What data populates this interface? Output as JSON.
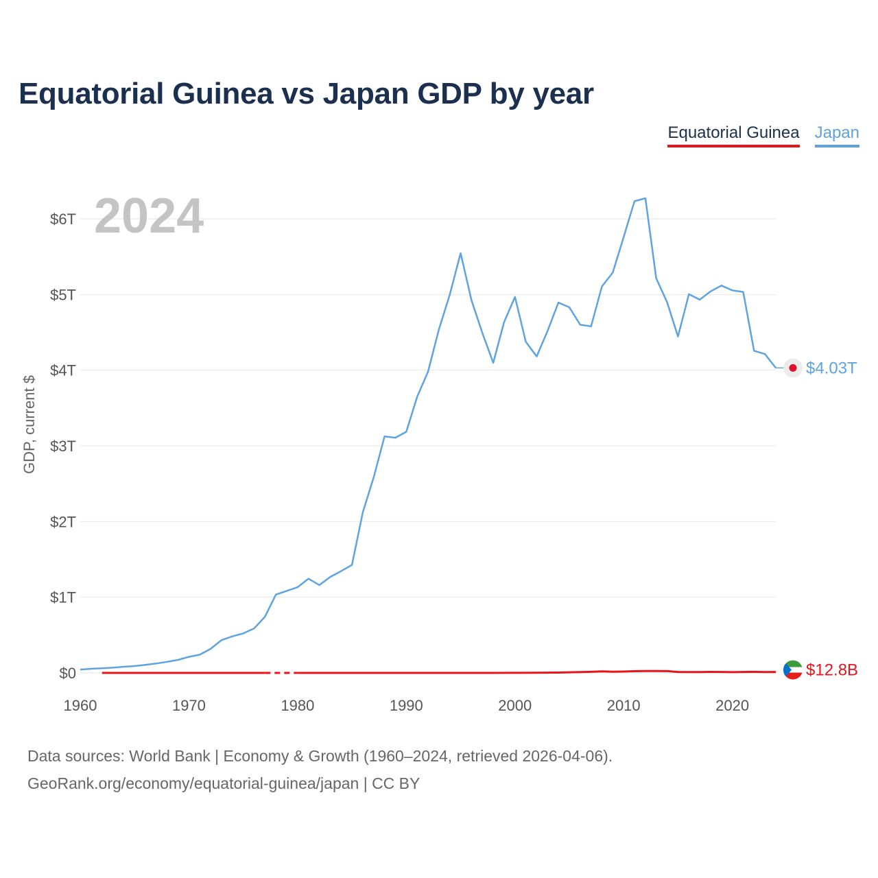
{
  "title": "Equatorial Guinea vs Japan GDP by year",
  "legend": [
    {
      "name": "Equatorial Guinea",
      "color": "#e8141c"
    },
    {
      "name": "Japan",
      "color": "#5ea3e0"
    }
  ],
  "year_label": "2024",
  "footer": {
    "line1": "Data sources: World Bank | Economy & Growth (1960–2024, retrieved 2026-04-06).",
    "line2": "GeoRank.org/economy/equatorial-guinea/japan | CC BY"
  },
  "chart_data": {
    "type": "line",
    "title": "Equatorial Guinea vs Japan GDP by year",
    "xlabel": "",
    "ylabel": "GDP, current $",
    "xlim": [
      1960,
      2024
    ],
    "ylim": [
      0,
      6
    ],
    "y_unit": "trillion US$",
    "x_ticks": [
      1960,
      1970,
      1980,
      1990,
      2000,
      2010,
      2020
    ],
    "y_ticks": [
      0,
      1,
      2,
      3,
      4,
      5,
      6
    ],
    "y_tick_labels": [
      "$0",
      "$1T",
      "$2T",
      "$3T",
      "$4T",
      "$5T",
      "$6T"
    ],
    "grid": true,
    "series": [
      {
        "name": "Japan",
        "color": "#5ea3e0",
        "end_label": "$4.03T",
        "points": [
          [
            1960,
            0.044
          ],
          [
            1961,
            0.054
          ],
          [
            1962,
            0.061
          ],
          [
            1963,
            0.069
          ],
          [
            1964,
            0.082
          ],
          [
            1965,
            0.091
          ],
          [
            1966,
            0.106
          ],
          [
            1967,
            0.124
          ],
          [
            1968,
            0.147
          ],
          [
            1969,
            0.172
          ],
          [
            1970,
            0.212
          ],
          [
            1971,
            0.241
          ],
          [
            1972,
            0.318
          ],
          [
            1973,
            0.433
          ],
          [
            1974,
            0.483
          ],
          [
            1975,
            0.522
          ],
          [
            1976,
            0.588
          ],
          [
            1977,
            0.742
          ],
          [
            1978,
            1.035
          ],
          [
            1979,
            1.084
          ],
          [
            1980,
            1.133
          ],
          [
            1981,
            1.244
          ],
          [
            1982,
            1.161
          ],
          [
            1983,
            1.268
          ],
          [
            1984,
            1.345
          ],
          [
            1985,
            1.427
          ],
          [
            1986,
            2.121
          ],
          [
            1987,
            2.584
          ],
          [
            1988,
            3.125
          ],
          [
            1989,
            3.108
          ],
          [
            1990,
            3.186
          ],
          [
            1991,
            3.649
          ],
          [
            1992,
            3.98
          ],
          [
            1993,
            4.536
          ],
          [
            1994,
            4.998
          ],
          [
            1995,
            5.546
          ],
          [
            1996,
            4.923
          ],
          [
            1997,
            4.492
          ],
          [
            1998,
            4.098
          ],
          [
            1999,
            4.636
          ],
          [
            2000,
            4.968
          ],
          [
            2001,
            4.374
          ],
          [
            2002,
            4.182
          ],
          [
            2003,
            4.519
          ],
          [
            2004,
            4.893
          ],
          [
            2005,
            4.831
          ],
          [
            2006,
            4.601
          ],
          [
            2007,
            4.579
          ],
          [
            2008,
            5.106
          ],
          [
            2009,
            5.289
          ],
          [
            2010,
            5.759
          ],
          [
            2011,
            6.233
          ],
          [
            2012,
            6.272
          ],
          [
            2013,
            5.212
          ],
          [
            2014,
            4.897
          ],
          [
            2015,
            4.445
          ],
          [
            2016,
            5.004
          ],
          [
            2017,
            4.931
          ],
          [
            2018,
            5.041
          ],
          [
            2019,
            5.118
          ],
          [
            2020,
            5.055
          ],
          [
            2021,
            5.034
          ],
          [
            2022,
            4.256
          ],
          [
            2023,
            4.213
          ],
          [
            2024,
            4.03
          ]
        ]
      },
      {
        "name": "Equatorial Guinea",
        "color": "#e8141c",
        "end_label": "$12.8B",
        "gap": [
          1977,
          1980
        ],
        "points": [
          [
            1962,
            1e-05
          ],
          [
            1965,
            2e-05
          ],
          [
            1970,
            3e-05
          ],
          [
            1975,
            5e-05
          ],
          [
            1977,
            6e-05
          ],
          [
            1980,
            5e-05
          ],
          [
            1985,
            6e-05
          ],
          [
            1990,
            0.00013
          ],
          [
            1995,
            0.00016
          ],
          [
            1998,
            0.00037
          ],
          [
            2000,
            0.0012
          ],
          [
            2002,
            0.0025
          ],
          [
            2004,
            0.0048
          ],
          [
            2005,
            0.0085
          ],
          [
            2006,
            0.0108
          ],
          [
            2007,
            0.0145
          ],
          [
            2008,
            0.0204
          ],
          [
            2009,
            0.0158
          ],
          [
            2010,
            0.0183
          ],
          [
            2011,
            0.0224
          ],
          [
            2012,
            0.0245
          ],
          [
            2013,
            0.0241
          ],
          [
            2014,
            0.0232
          ],
          [
            2015,
            0.0131
          ],
          [
            2016,
            0.011
          ],
          [
            2017,
            0.0122
          ],
          [
            2018,
            0.0135
          ],
          [
            2019,
            0.0124
          ],
          [
            2020,
            0.0101
          ],
          [
            2021,
            0.0123
          ],
          [
            2022,
            0.0141
          ],
          [
            2023,
            0.012
          ],
          [
            2024,
            0.0128
          ]
        ]
      }
    ]
  }
}
